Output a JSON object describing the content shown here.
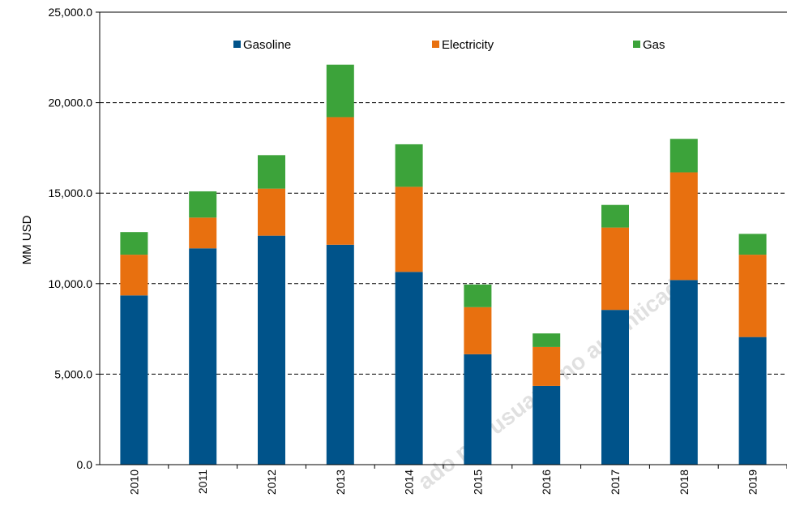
{
  "chart_data": {
    "type": "bar",
    "stacked": true,
    "categories": [
      "2010",
      "2011",
      "2012",
      "2013",
      "2014",
      "2015",
      "2016",
      "2017",
      "2018",
      "2019"
    ],
    "series": [
      {
        "name": "Gasoline",
        "color": "#00538a",
        "values": [
          9350,
          11950,
          12650,
          12150,
          10650,
          6100,
          4350,
          8550,
          10200,
          7050
        ]
      },
      {
        "name": "Electricity",
        "color": "#e8700f",
        "values": [
          2250,
          1700,
          2600,
          7050,
          4700,
          2600,
          2150,
          4550,
          5950,
          4550
        ]
      },
      {
        "name": "Gas",
        "color": "#3ca33a",
        "values": [
          1250,
          1450,
          1850,
          2900,
          2350,
          1250,
          750,
          1250,
          1850,
          1150
        ]
      }
    ],
    "ylabel": "MM USD",
    "ylim": [
      0,
      25000
    ],
    "yticks": [
      {
        "value": 0,
        "label": "0.0"
      },
      {
        "value": 5000,
        "label": "5,000.0"
      },
      {
        "value": 10000,
        "label": "10,000.0"
      },
      {
        "value": 15000,
        "label": "15,000.0"
      },
      {
        "value": 20000,
        "label": "20,000.0"
      },
      {
        "value": 25000,
        "label": "25,000.0"
      }
    ],
    "grid": "horizontal-dashed",
    "legend": "top-inside"
  },
  "watermark": "ado por usuario no autenticado"
}
